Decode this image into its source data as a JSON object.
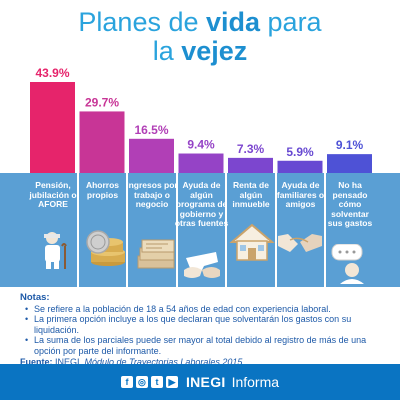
{
  "title": {
    "line1_plain": "Planes de ",
    "line1_bold": "vida",
    "line1_end": " para",
    "line2_plain": "la ",
    "line2_bold": "vejez"
  },
  "chart_data": {
    "type": "bar",
    "categories": [
      "Pensión, jubilación o AFORE",
      "Ahorros propios",
      "Ingresos por trabajo o negocio",
      "Ayuda de algún programa de gobierno y otras fuentes",
      "Renta de algún inmueble",
      "Ayuda de familiares o amigos",
      "No ha pensado cómo solventar sus gastos"
    ],
    "values": [
      43.9,
      29.7,
      16.5,
      9.4,
      7.3,
      5.9,
      9.1
    ],
    "value_labels": [
      "43.9%",
      "29.7%",
      "16.5%",
      "9.4%",
      "7.3%",
      "5.9%",
      "9.1%"
    ],
    "colors": [
      "#e6246b",
      "#c83596",
      "#b13fb6",
      "#9543c6",
      "#7c46cf",
      "#6749d2",
      "#4e52d6"
    ],
    "ylim": [
      0,
      43.9
    ]
  },
  "icons": [
    "elderly-man-icon",
    "coins-icon",
    "banknotes-icon",
    "map-hands-icon",
    "house-icon",
    "handshake-icon",
    "thinking-person-icon"
  ],
  "notes": {
    "title": "Notas:",
    "items": [
      "Se refiere a la población de 18 a 54 años de edad con experiencia laboral.",
      "La primera opción incluye a los que declaran que solventarán los gastos con su liquidación.",
      "La suma de los parciales puede ser mayor al total debido al registro de más de una opción por parte del informante."
    ],
    "source_label": "Fuente:",
    "source_text": " INEGI. ",
    "source_title": "Módulo de Trayectorias Laborales 2015."
  },
  "footer": {
    "social": [
      "f",
      "◎",
      "t",
      "▶"
    ],
    "brand": "INEGI",
    "brand_sub": "Informa"
  }
}
